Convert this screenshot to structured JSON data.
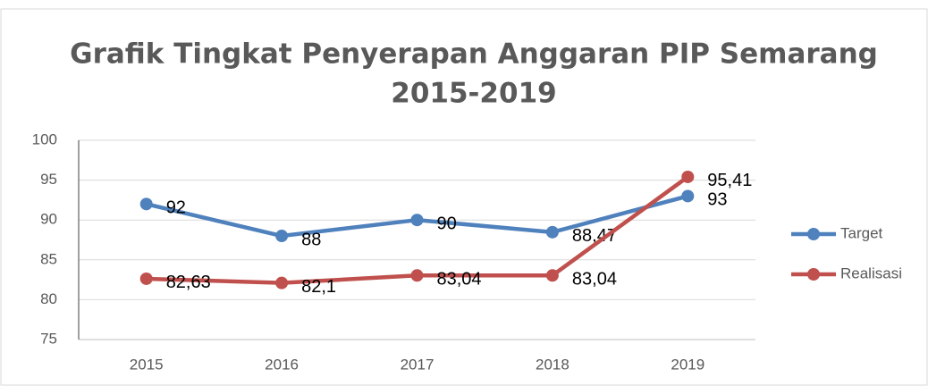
{
  "chart_data": {
    "type": "line",
    "title": [
      "Grafik Tingkat Penyerapan Anggaran PIP Semarang",
      "2015-2019"
    ],
    "categories": [
      "2015",
      "2016",
      "2017",
      "2018",
      "2019"
    ],
    "series": [
      {
        "name": "Target",
        "color": "#4f81bd",
        "values": [
          92,
          88,
          90,
          88.47,
          93
        ],
        "value_labels": [
          "92",
          "88",
          "90",
          "88,47",
          "93"
        ]
      },
      {
        "name": "Realisasi",
        "color": "#c0504d",
        "values": [
          82.63,
          82.1,
          83.04,
          83.04,
          95.41
        ],
        "value_labels": [
          "82,63",
          "82,1",
          "83,04",
          "83,04",
          "95,41"
        ]
      }
    ],
    "ylim": [
      75,
      100
    ],
    "yticks": [
      75,
      80,
      85,
      90,
      95,
      100
    ],
    "grid": true,
    "legend": "right"
  }
}
